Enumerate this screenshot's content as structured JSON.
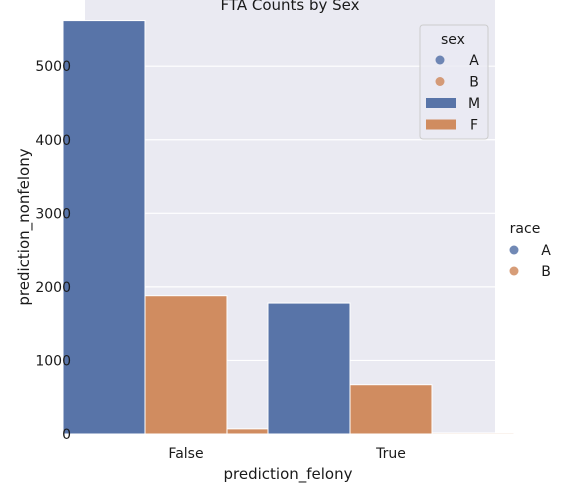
{
  "chart_data": {
    "type": "bar",
    "title": "FTA Counts by Sex",
    "xlabel": "prediction_felony",
    "ylabel": "prediction_nonfelony",
    "categories": [
      "False",
      "True"
    ],
    "series": [
      {
        "name": "M",
        "values": [
          5620,
          1780
        ],
        "color": "#5874a8"
      },
      {
        "name": "F",
        "values": [
          1880,
          670
        ],
        "color": "#d08c60"
      },
      {
        "name": "",
        "values": [
          70,
          15
        ],
        "color": "#d08c60"
      }
    ],
    "ylim": [
      0,
      5900
    ],
    "yticks": [
      0,
      1000,
      2000,
      3000,
      4000,
      5000
    ],
    "grid": true,
    "background": "#eaeaf2",
    "legend_sex": {
      "title": "sex",
      "placement": "top-right",
      "items": [
        {
          "label": "A",
          "marker": "dot",
          "color": "#5874a8"
        },
        {
          "label": "B",
          "marker": "dot",
          "color": "#d08c60"
        },
        {
          "label": "M",
          "marker": "patch",
          "color": "#5874a8"
        },
        {
          "label": "F",
          "marker": "patch",
          "color": "#d08c60"
        }
      ]
    },
    "legend_race": {
      "title": "race",
      "placement": "right",
      "items": [
        {
          "label": "A",
          "color": "#5874a8"
        },
        {
          "label": "B",
          "color": "#d08c60"
        }
      ]
    }
  }
}
